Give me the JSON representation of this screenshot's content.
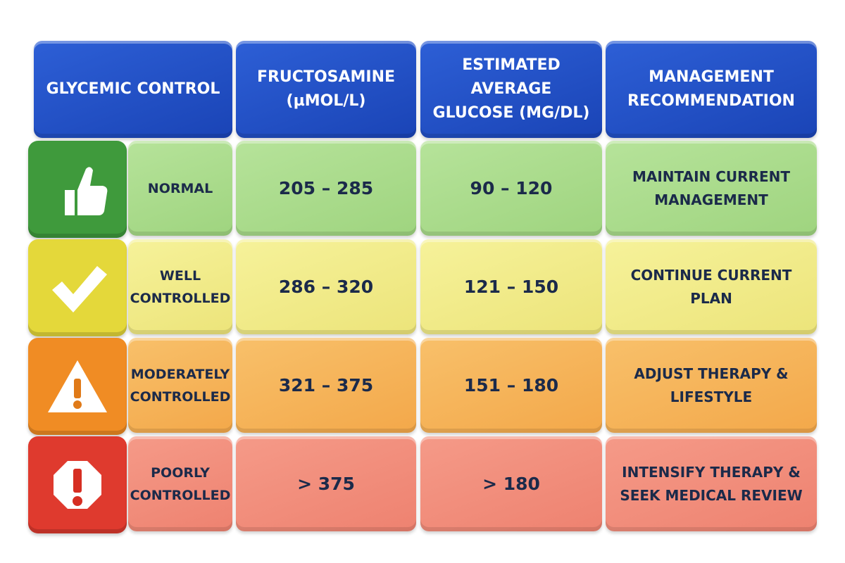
{
  "table": {
    "headers": [
      "GLYCEMIC CONTROL",
      "FRUCTOSAMINE (µMOL/L)",
      "ESTIMATED AVERAGE GLUCOSE (MG/DL)",
      "MANAGEMENT RECOMMENDATION"
    ],
    "rows": [
      [
        "NORMAL",
        "205 – 285",
        "90 – 120",
        "MAINTAIN CURRENT MANAGEMENT"
      ],
      [
        "WELL CONTROLLED",
        "286 – 320",
        "121 – 150",
        "CONTINUE CURRENT PLAN"
      ],
      [
        "MODERATELY CONTROLLED",
        "321 – 375",
        "151 – 180",
        "ADJUST THERAPY & LIFESTYLE"
      ],
      [
        "POORLY CONTROLLED",
        "> 375",
        "> 180",
        "INTENSIFY THERAPY & SEEK MEDICAL REVIEW"
      ]
    ]
  }
}
